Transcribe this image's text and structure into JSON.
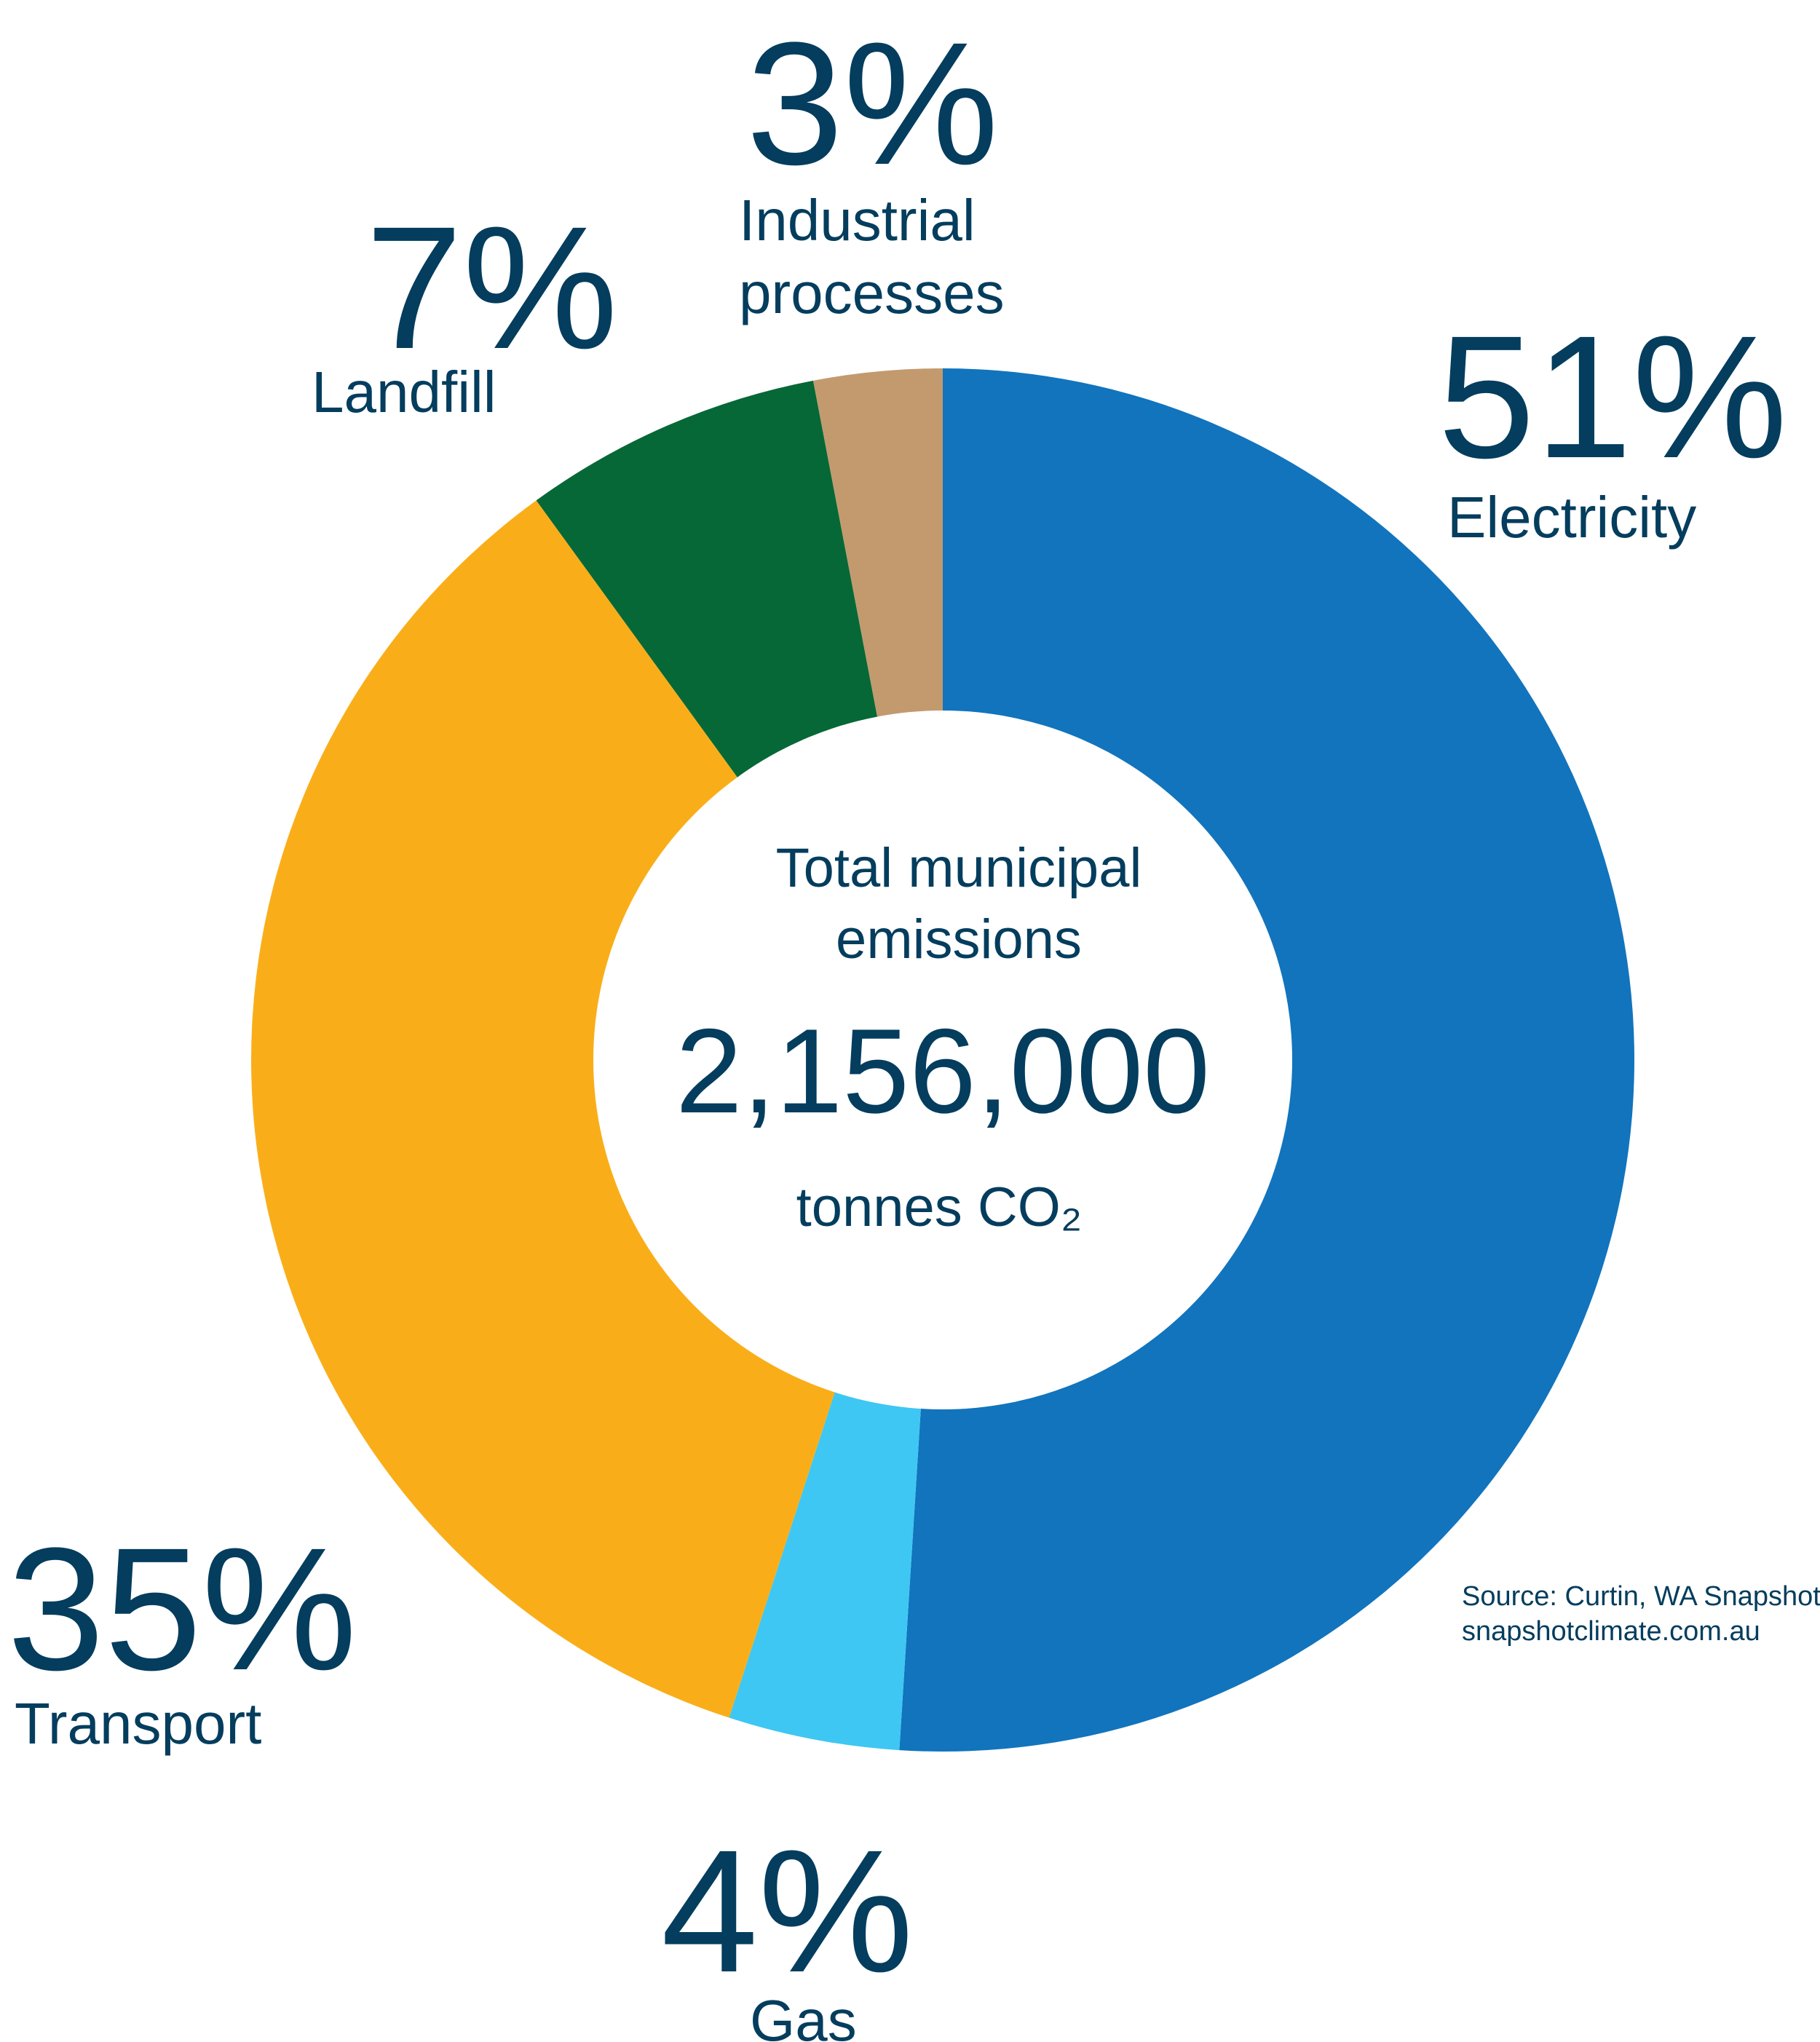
{
  "chart_data": {
    "type": "pie",
    "style": "donut",
    "slices": [
      {
        "label": "Electricity",
        "percent_label": "51%",
        "value": 51,
        "color": "#1174bd"
      },
      {
        "label": "Gas",
        "percent_label": "4%",
        "value": 4,
        "color": "#3ec7f3"
      },
      {
        "label": "Transport",
        "percent_label": "35%",
        "value": 35,
        "color": "#f9ae19"
      },
      {
        "label": "Landfill",
        "percent_label": "7%",
        "value": 7,
        "color": "#066836"
      },
      {
        "label": "Industrial processes",
        "label_lines": [
          "Industrial",
          "processes"
        ],
        "percent_label": "3%",
        "value": 3,
        "color": "#c39a6e"
      }
    ],
    "center": {
      "title_lines": [
        "Total municipal",
        "emissions"
      ],
      "total": "2,156,000",
      "unit": "tonnes CO₂"
    }
  },
  "source": {
    "line1": "Source: Curtin, WA Snapshot",
    "line2": "snapshotclimate.com.au"
  },
  "text_color": "#043d5d"
}
